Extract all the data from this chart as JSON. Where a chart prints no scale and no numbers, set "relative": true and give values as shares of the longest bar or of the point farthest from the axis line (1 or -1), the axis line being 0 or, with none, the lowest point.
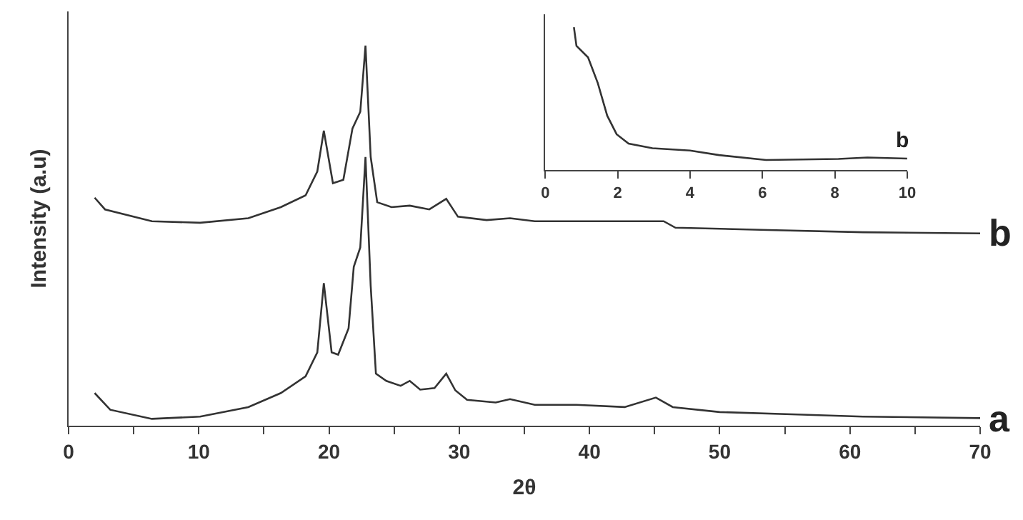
{
  "chart_data": [
    {
      "type": "line",
      "relative": true,
      "xlabel": "2θ",
      "ylabel": "Intensity (a.u)",
      "xlim": [
        0,
        70
      ],
      "xticks": [
        0,
        {
          "value": 5,
          "label": null
        },
        10,
        {
          "value": 15,
          "label": null
        },
        20,
        {
          "value": 25,
          "label": null
        },
        30,
        {
          "value": 35,
          "label": null
        },
        40,
        {
          "value": 45,
          "label": null
        },
        50,
        {
          "value": 55,
          "label": null
        },
        60,
        {
          "value": 65,
          "label": null
        },
        70
      ],
      "series": [
        {
          "name": "a",
          "color": "#333333",
          "x": [
            2.0,
            3.2,
            6.4,
            10.1,
            13.8,
            16.3,
            18.2,
            19.1,
            19.6,
            20.2,
            20.7,
            21.5,
            21.9,
            22.4,
            22.8,
            23.2,
            23.6,
            24.4,
            25.5,
            26.2,
            27.0,
            28.1,
            29.0,
            29.7,
            30.6,
            32.8,
            33.9,
            35.8,
            39.0,
            42.7,
            45.1,
            46.4,
            50.0,
            55.5,
            61.0,
            70.0
          ],
          "values": [
            0.086,
            0.042,
            0.018,
            0.024,
            0.049,
            0.086,
            0.13,
            0.193,
            0.375,
            0.193,
            0.187,
            0.256,
            0.418,
            0.469,
            0.707,
            0.368,
            0.137,
            0.118,
            0.105,
            0.118,
            0.095,
            0.099,
            0.137,
            0.093,
            0.068,
            0.061,
            0.07,
            0.055,
            0.055,
            0.049,
            0.074,
            0.049,
            0.036,
            0.03,
            0.024,
            0.02
          ]
        },
        {
          "name": "b",
          "color": "#333333",
          "x": [
            2.0,
            2.8,
            6.4,
            10.1,
            13.8,
            16.3,
            18.2,
            19.1,
            19.6,
            20.3,
            21.1,
            21.8,
            22.4,
            22.8,
            23.2,
            23.7,
            24.8,
            26.2,
            27.7,
            29.0,
            29.9,
            32.1,
            33.9,
            35.8,
            41.1,
            45.7,
            46.6,
            53.7,
            61.0,
            70.0
          ],
          "values": [
            0.6,
            0.569,
            0.538,
            0.534,
            0.546,
            0.575,
            0.606,
            0.669,
            0.776,
            0.638,
            0.647,
            0.782,
            0.826,
            1.0,
            0.707,
            0.588,
            0.575,
            0.579,
            0.569,
            0.597,
            0.55,
            0.541,
            0.546,
            0.538,
            0.538,
            0.538,
            0.521,
            0.515,
            0.509,
            0.506
          ]
        }
      ]
    },
    {
      "type": "line",
      "relative": true,
      "xlim": [
        0,
        10
      ],
      "xticks": [
        0,
        2,
        4,
        6,
        8,
        10
      ],
      "series": [
        {
          "name": "b",
          "color": "#333333",
          "x": [
            0.79,
            0.86,
            1.18,
            1.45,
            1.71,
            1.97,
            2.3,
            2.96,
            4.0,
            4.8,
            6.1,
            8.1,
            8.9,
            10.0
          ],
          "values": [
            1.0,
            0.87,
            0.789,
            0.609,
            0.381,
            0.251,
            0.186,
            0.153,
            0.137,
            0.105,
            0.071,
            0.078,
            0.088,
            0.081
          ]
        }
      ]
    }
  ]
}
